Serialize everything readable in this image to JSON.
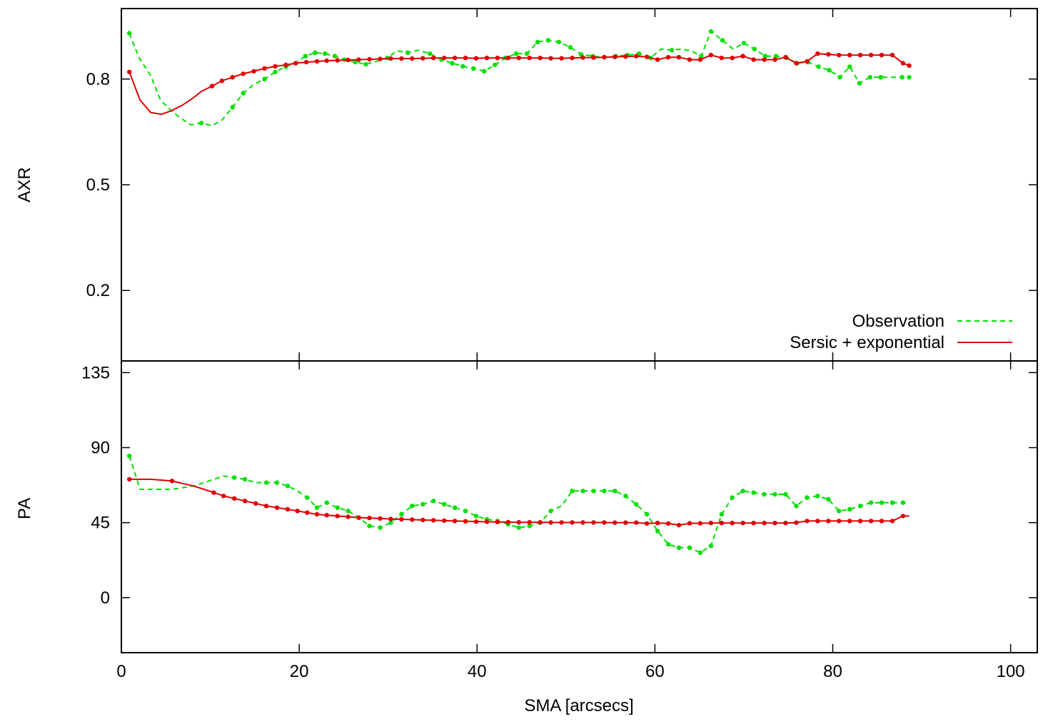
{
  "chart_data": [
    {
      "type": "line",
      "panel": "top",
      "ylabel": "AXR",
      "xlim": [
        0,
        103
      ],
      "ylim": [
        0.0,
        1.0
      ],
      "yticks": [
        {
          "value": 0.2,
          "label": "0.2"
        },
        {
          "value": 0.5,
          "label": "0.5"
        },
        {
          "value": 0.8,
          "label": "0.8"
        }
      ],
      "legend": {
        "placement": "bottom-right",
        "entries": [
          {
            "label": "Observation",
            "color": "#00e000",
            "style": "dashed"
          },
          {
            "label": "Sersic + exponential",
            "color": "#e00000",
            "style": "solid"
          }
        ]
      },
      "series": [
        {
          "name": "Observation",
          "color": "#00e000",
          "style": "dashed",
          "x": [
            0.9,
            2.0,
            3.3,
            4.4,
            5.6,
            6.6,
            7.8,
            9.0,
            10.2,
            11.3,
            12.5,
            13.7,
            14.9,
            16.1,
            17.3,
            18.5,
            19.6,
            20.7,
            21.8,
            22.9,
            24.0,
            25.1,
            26.3,
            27.5,
            28.7,
            29.9,
            31.0,
            32.2,
            33.4,
            34.7,
            36.0,
            37.2,
            38.4,
            39.6,
            40.8,
            42.0,
            43.2,
            44.4,
            45.6,
            46.8,
            48.0,
            49.2,
            50.5,
            51.7,
            53.0,
            54.3,
            55.6,
            56.9,
            58.2,
            59.5,
            60.7,
            61.9,
            63.0,
            64.1,
            65.2,
            66.3,
            67.6,
            68.8,
            70.0,
            71.2,
            72.4,
            73.6,
            74.8,
            76.0,
            77.2,
            78.4,
            79.6,
            80.8,
            81.9,
            83.0,
            84.2,
            85.4,
            86.6,
            87.8,
            88.6
          ],
          "y": [
            0.93,
            0.86,
            0.81,
            0.74,
            0.71,
            0.69,
            0.67,
            0.675,
            0.668,
            0.683,
            0.72,
            0.76,
            0.785,
            0.8,
            0.82,
            0.835,
            0.845,
            0.865,
            0.875,
            0.872,
            0.865,
            0.855,
            0.848,
            0.842,
            0.85,
            0.86,
            0.88,
            0.875,
            0.882,
            0.872,
            0.855,
            0.845,
            0.836,
            0.83,
            0.822,
            0.84,
            0.86,
            0.872,
            0.872,
            0.905,
            0.91,
            0.905,
            0.89,
            0.87,
            0.865,
            0.862,
            0.865,
            0.868,
            0.872,
            0.86,
            0.885,
            0.882,
            0.885,
            0.88,
            0.865,
            0.935,
            0.91,
            0.885,
            0.902,
            0.885,
            0.865,
            0.865,
            0.86,
            0.845,
            0.848,
            0.835,
            0.825,
            0.805,
            0.835,
            0.788,
            0.805,
            0.805,
            0.805,
            0.805,
            0.805
          ],
          "markers": [
            0,
            7,
            10,
            11,
            13,
            14,
            15,
            16,
            17,
            18,
            19,
            20,
            21,
            22,
            23,
            25,
            27,
            29,
            30,
            31,
            32,
            33,
            34,
            35,
            36,
            37,
            38,
            39,
            40,
            41,
            42,
            43,
            44,
            45,
            46,
            47,
            48,
            49,
            51,
            54,
            55,
            56,
            58,
            59,
            60,
            61,
            62,
            63,
            64,
            65,
            66,
            67,
            68,
            69,
            70,
            71,
            73,
            74,
            76,
            78,
            80,
            82,
            83,
            84,
            85,
            86,
            87,
            88
          ]
        },
        {
          "name": "Sersic + exponential",
          "color": "#e00000",
          "style": "solid",
          "x": [
            0.9,
            2.1,
            3.3,
            4.5,
            5.6,
            6.8,
            8.0,
            9.0,
            10.2,
            11.3,
            12.5,
            13.7,
            14.9,
            16.1,
            17.3,
            18.5,
            19.6,
            20.8,
            22.0,
            23.1,
            24.3,
            25.5,
            26.7,
            27.9,
            29.1,
            30.3,
            31.5,
            32.7,
            33.9,
            35.1,
            36.3,
            37.5,
            38.7,
            39.9,
            41.1,
            42.3,
            43.5,
            44.7,
            45.9,
            47.1,
            48.3,
            49.5,
            50.7,
            51.9,
            53.1,
            54.3,
            55.5,
            56.7,
            57.9,
            59.1,
            60.3,
            61.5,
            62.7,
            63.9,
            65.1,
            66.3,
            67.5,
            68.7,
            69.9,
            71.1,
            72.3,
            73.5,
            74.7,
            75.9,
            77.1,
            78.3,
            79.5,
            80.7,
            81.9,
            83.1,
            84.3,
            85.5,
            86.7,
            87.9,
            88.6
          ],
          "y": [
            0.82,
            0.74,
            0.705,
            0.7,
            0.71,
            0.725,
            0.745,
            0.765,
            0.78,
            0.795,
            0.805,
            0.815,
            0.822,
            0.83,
            0.836,
            0.84,
            0.845,
            0.848,
            0.85,
            0.852,
            0.853,
            0.854,
            0.855,
            0.856,
            0.857,
            0.858,
            0.858,
            0.858,
            0.859,
            0.86,
            0.86,
            0.86,
            0.86,
            0.859,
            0.86,
            0.86,
            0.86,
            0.86,
            0.86,
            0.86,
            0.859,
            0.859,
            0.86,
            0.861,
            0.861,
            0.862,
            0.863,
            0.864,
            0.865,
            0.863,
            0.855,
            0.862,
            0.862,
            0.855,
            0.855,
            0.868,
            0.86,
            0.86,
            0.865,
            0.855,
            0.855,
            0.855,
            0.862,
            0.845,
            0.85,
            0.872,
            0.87,
            0.868,
            0.868,
            0.868,
            0.868,
            0.868,
            0.868,
            0.845,
            0.838
          ],
          "markers": [
            0,
            8,
            9,
            10,
            11,
            12,
            13,
            14,
            15,
            16,
            17,
            18,
            19,
            20,
            21,
            22,
            23,
            24,
            25,
            26,
            27,
            28,
            29,
            30,
            31,
            32,
            33,
            34,
            35,
            36,
            37,
            38,
            39,
            40,
            41,
            42,
            43,
            44,
            45,
            46,
            47,
            48,
            49,
            50,
            51,
            52,
            53,
            54,
            55,
            56,
            57,
            58,
            59,
            60,
            61,
            62,
            63,
            64,
            65,
            66,
            67,
            68,
            69,
            70,
            71,
            72,
            73,
            74,
            75,
            76,
            77,
            78,
            79,
            80,
            81,
            82,
            83,
            84,
            85,
            86,
            87,
            88
          ]
        }
      ]
    },
    {
      "type": "line",
      "panel": "bottom",
      "ylabel": "PA",
      "xlabel": "SMA [arcsecs]",
      "xlim": [
        0,
        103
      ],
      "ylim": [
        -33,
        142
      ],
      "xticks": [
        {
          "value": 0,
          "label": "0"
        },
        {
          "value": 20,
          "label": "20"
        },
        {
          "value": 40,
          "label": "40"
        },
        {
          "value": 60,
          "label": "60"
        },
        {
          "value": 80,
          "label": "80"
        },
        {
          "value": 100,
          "label": "100"
        }
      ],
      "yticks": [
        {
          "value": 0,
          "label": "0"
        },
        {
          "value": 45,
          "label": "45"
        },
        {
          "value": 90,
          "label": "90"
        },
        {
          "value": 135,
          "label": "135"
        }
      ],
      "series": [
        {
          "name": "Observation",
          "color": "#00e000",
          "style": "dashed",
          "x": [
            0.9,
            2.1,
            3.3,
            4.5,
            5.7,
            6.9,
            8.1,
            9.3,
            10.4,
            11.5,
            12.7,
            13.9,
            15.1,
            16.3,
            17.5,
            18.7,
            19.8,
            20.9,
            22.0,
            23.1,
            24.3,
            25.5,
            26.7,
            27.9,
            29.1,
            30.3,
            31.5,
            32.7,
            33.9,
            35.1,
            36.3,
            37.5,
            38.7,
            39.9,
            41.1,
            42.3,
            43.5,
            44.7,
            45.9,
            47.1,
            48.3,
            49.5,
            50.7,
            51.9,
            53.1,
            54.3,
            55.5,
            56.7,
            57.9,
            59.1,
            60.3,
            61.5,
            62.7,
            63.9,
            65.1,
            66.3,
            67.5,
            68.7,
            69.9,
            71.1,
            72.3,
            73.5,
            74.7,
            75.9,
            77.1,
            78.3,
            79.5,
            80.7,
            81.9,
            83.1,
            84.3,
            85.5,
            86.7,
            87.9,
            88.6
          ],
          "y": [
            85,
            65,
            65,
            65,
            65,
            66,
            67,
            69,
            71,
            73,
            72,
            71,
            69,
            69,
            69,
            67,
            64,
            60,
            54,
            57,
            54,
            52,
            48,
            43,
            42,
            45,
            50,
            55,
            56,
            58,
            56,
            54,
            52,
            49,
            47,
            46,
            44,
            42,
            43,
            45,
            52,
            55,
            64,
            64,
            64,
            64,
            64,
            61,
            56,
            50,
            40,
            32,
            30,
            30,
            27,
            31,
            50,
            60,
            64,
            63,
            62,
            62,
            62,
            55,
            60,
            61,
            59,
            52,
            53,
            55,
            57,
            57,
            57,
            57,
            57
          ],
          "markers": [
            0,
            10,
            11,
            13,
            14,
            15,
            17,
            18,
            19,
            20,
            21,
            22,
            23,
            24,
            25,
            26,
            27,
            28,
            29,
            30,
            31,
            32,
            33,
            34,
            35,
            36,
            37,
            38,
            39,
            40,
            42,
            43,
            44,
            45,
            46,
            47,
            48,
            49,
            50,
            51,
            52,
            53,
            54,
            55,
            56,
            57,
            58,
            59,
            60,
            61,
            62,
            63,
            64,
            65,
            66,
            67,
            68,
            69,
            70,
            71,
            72,
            73,
            75,
            76,
            77,
            78,
            79,
            80,
            81,
            82,
            83,
            84,
            85,
            86,
            87,
            88
          ]
        },
        {
          "name": "Sersic + exponential",
          "color": "#e00000",
          "style": "solid",
          "x": [
            0.9,
            2.1,
            3.3,
            4.5,
            5.7,
            6.9,
            8.1,
            9.3,
            10.4,
            11.5,
            12.7,
            13.9,
            15.1,
            16.3,
            17.5,
            18.7,
            19.8,
            20.9,
            22.0,
            23.1,
            24.3,
            25.5,
            26.7,
            27.9,
            29.1,
            30.3,
            31.5,
            32.7,
            33.9,
            35.1,
            36.3,
            37.5,
            38.7,
            39.9,
            41.1,
            42.3,
            43.5,
            44.7,
            45.9,
            47.1,
            48.3,
            49.5,
            50.7,
            51.9,
            53.1,
            54.3,
            55.5,
            56.7,
            57.9,
            59.1,
            60.3,
            61.5,
            62.7,
            63.9,
            65.1,
            66.3,
            67.5,
            68.7,
            69.9,
            71.1,
            72.3,
            73.5,
            74.7,
            75.9,
            77.1,
            78.3,
            79.5,
            80.7,
            81.9,
            83.1,
            84.3,
            85.5,
            86.7,
            87.9,
            88.6
          ],
          "y": [
            71,
            71,
            71,
            70.5,
            70,
            68.5,
            67,
            65,
            63,
            61,
            59.5,
            58,
            56.5,
            55,
            54,
            53,
            52,
            51,
            50,
            49.5,
            49,
            48.5,
            48,
            47.8,
            47.5,
            47.2,
            47,
            46.8,
            46.6,
            46.4,
            46.2,
            46,
            45.8,
            45.6,
            45.5,
            45.4,
            45.3,
            45.2,
            45.2,
            45.2,
            45.1,
            45.1,
            45.1,
            45.1,
            45.1,
            45.1,
            45,
            45,
            45,
            44.5,
            44.8,
            44.5,
            43.5,
            44.6,
            44.6,
            44.8,
            44.8,
            44.8,
            44.8,
            44.8,
            44.8,
            44.8,
            44.8,
            45,
            46,
            46,
            46,
            46,
            46,
            46,
            46,
            46,
            46,
            49,
            49
          ],
          "markers": [
            0,
            4,
            8,
            9,
            10,
            11,
            12,
            13,
            14,
            15,
            16,
            17,
            18,
            19,
            20,
            21,
            22,
            23,
            24,
            25,
            26,
            27,
            28,
            29,
            30,
            31,
            32,
            33,
            34,
            35,
            36,
            37,
            38,
            39,
            40,
            41,
            42,
            43,
            44,
            45,
            46,
            47,
            48,
            49,
            50,
            51,
            52,
            53,
            54,
            55,
            56,
            57,
            58,
            59,
            60,
            61,
            62,
            63,
            64,
            65,
            66,
            67,
            68,
            69,
            70,
            71,
            72,
            73
          ]
        }
      ]
    }
  ]
}
